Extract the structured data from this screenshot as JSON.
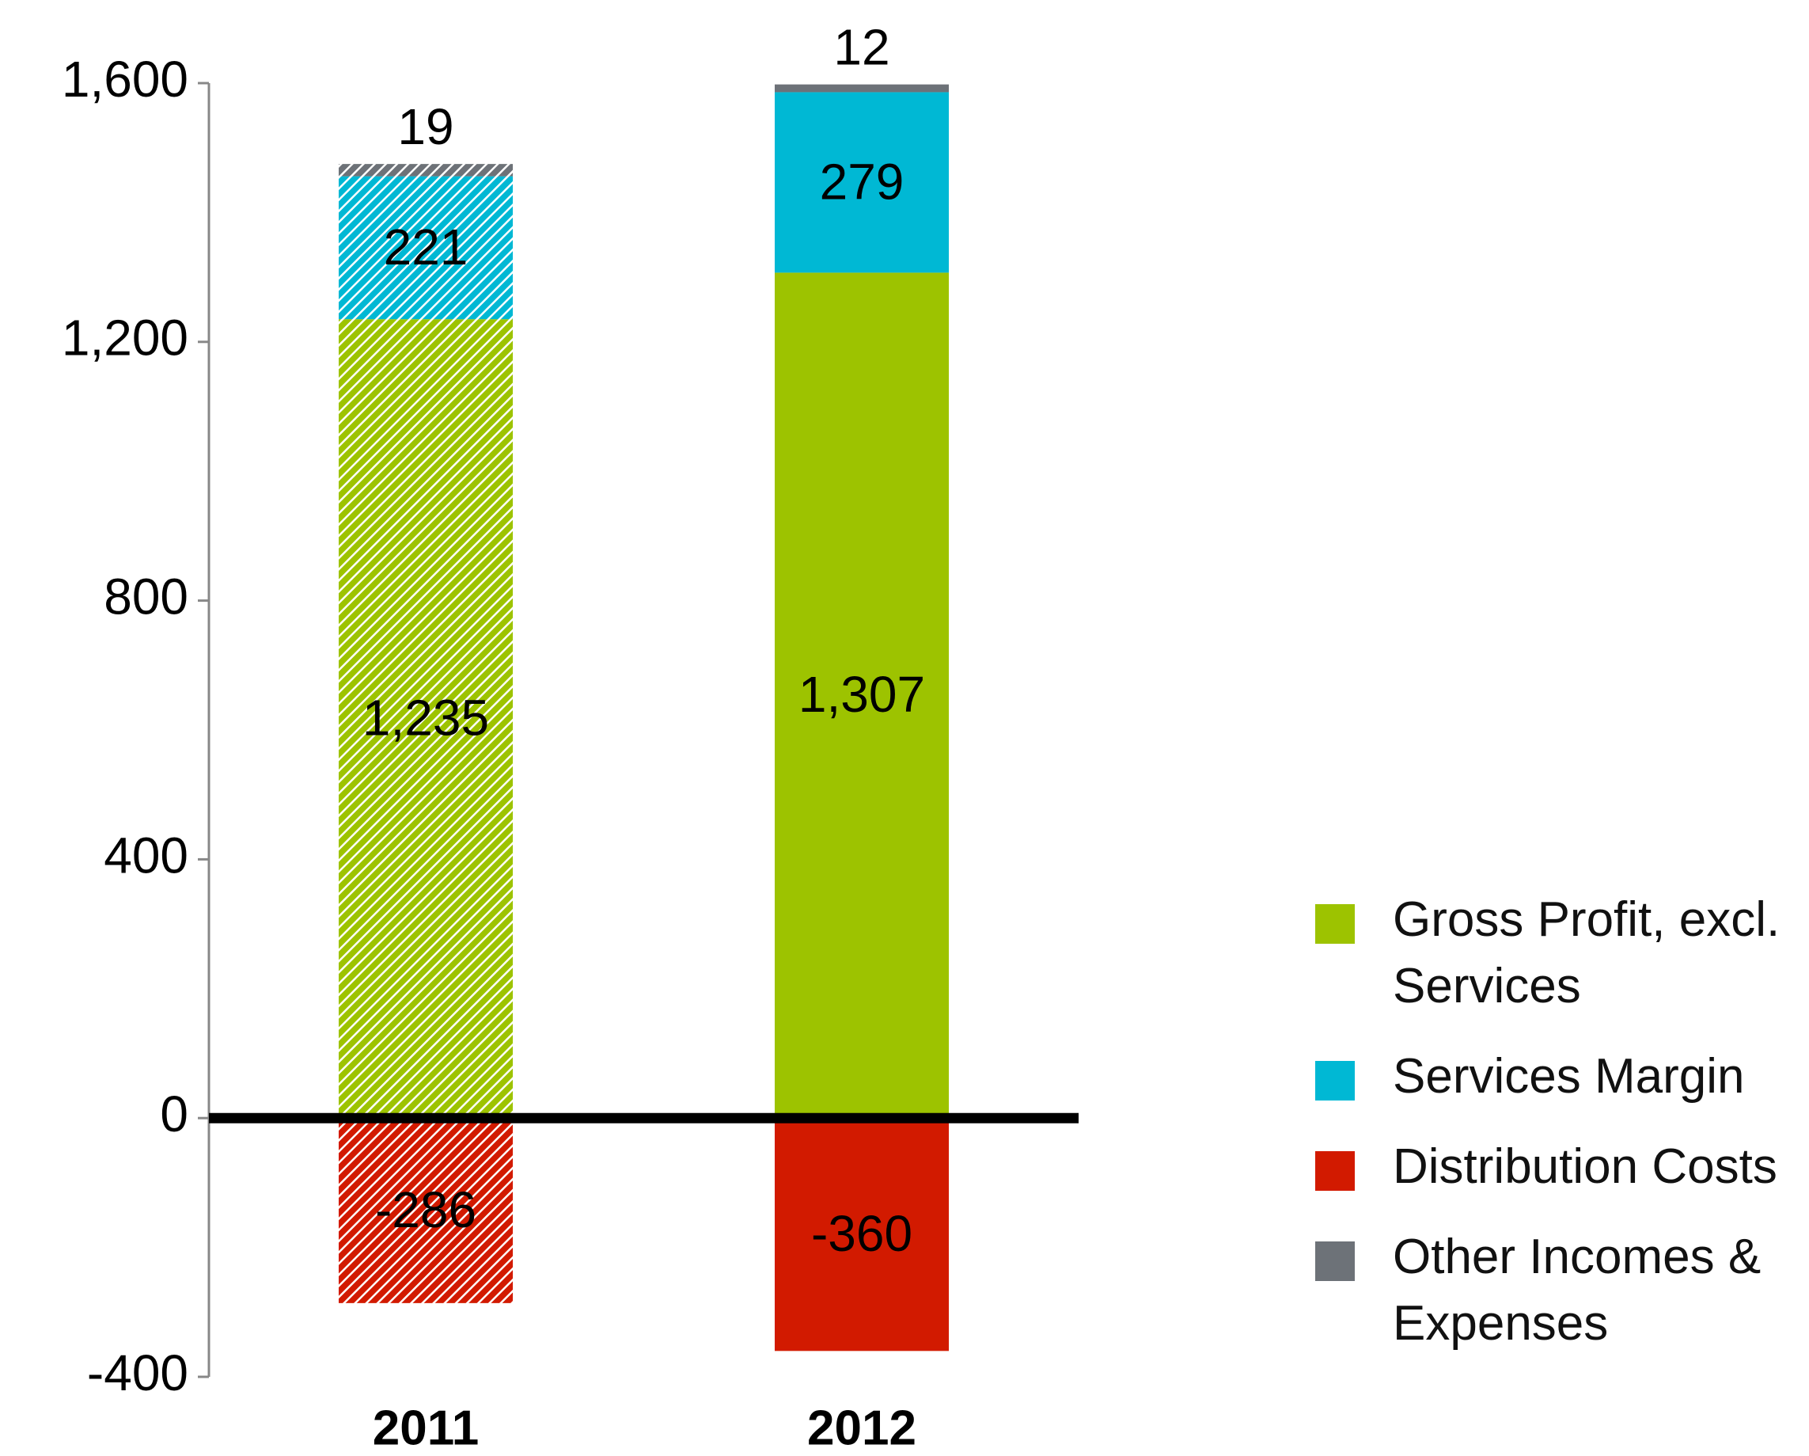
{
  "chart_data": {
    "type": "stacked_bar",
    "categories": [
      "2011",
      "2012"
    ],
    "hatched": [
      true,
      false
    ],
    "series": [
      {
        "name": "Gross Profit, excl. Services",
        "color": "#9dc300",
        "values": [
          1235,
          1307
        ],
        "value_labels": [
          "1,235",
          "1,307"
        ]
      },
      {
        "name": "Services Margin",
        "color": "#00b8d4",
        "values": [
          221,
          279
        ]
      },
      {
        "name": "Distribution Costs",
        "color": "#d21a00",
        "values": [
          -286,
          -360
        ]
      },
      {
        "name": "Other Incomes & Expenses",
        "color": "#6d7278",
        "values": [
          19,
          12
        ]
      }
    ],
    "ylim": [
      -400,
      1600
    ],
    "yticks": [
      -400,
      0,
      400,
      800,
      {
        "value": 1200,
        "label": "1,200"
      },
      {
        "value": 1600,
        "label": "1,600"
      }
    ]
  }
}
